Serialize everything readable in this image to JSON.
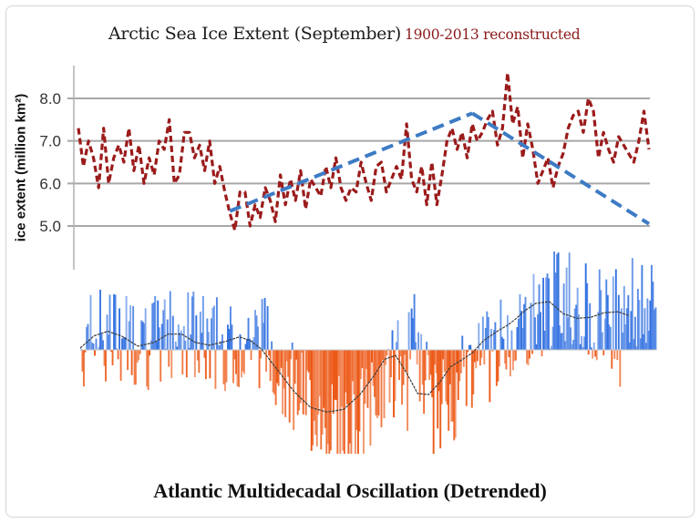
{
  "chart_data": [
    {
      "type": "line",
      "title": "Arctic Sea Ice Extent",
      "title_qualifier": "(September)",
      "subtitle": "1900-2013 reconstructed",
      "xlabel": "",
      "ylabel": "ice extent (million km²)",
      "ylim": [
        4.3,
        8.8
      ],
      "xlim": [
        1900,
        2013
      ],
      "yticks": [
        5.0,
        6.0,
        7.0,
        8.0
      ],
      "ytick_labels": [
        "5.0",
        "6.0",
        "7.0",
        "8.0"
      ],
      "grid": true,
      "colors": {
        "series": "#9b1b1b",
        "trend": "#3d7bc4",
        "grid": "#a8a8a8",
        "axis": "#b0b0b0"
      },
      "series": [
        {
          "name": "September ice extent",
          "style": "dashed",
          "x_start": 1900,
          "values": [
            7.3,
            6.4,
            7.0,
            6.6,
            5.9,
            7.3,
            6.0,
            6.6,
            6.9,
            6.5,
            7.3,
            6.3,
            6.9,
            6.0,
            6.6,
            6.2,
            7.0,
            6.8,
            7.5,
            6.0,
            6.2,
            7.2,
            7.2,
            6.6,
            6.9,
            6.3,
            7.0,
            6.0,
            6.4,
            5.8,
            5.3,
            4.9,
            5.8,
            5.8,
            5.0,
            5.5,
            5.2,
            5.9,
            5.6,
            5.1,
            6.2,
            5.5,
            6.1,
            5.6,
            6.3,
            5.4,
            6.1,
            5.9,
            5.7,
            6.4,
            5.9,
            6.6,
            5.9,
            5.6,
            5.9,
            5.8,
            6.5,
            6.0,
            5.6,
            6.4,
            6.5,
            5.8,
            6.1,
            6.4,
            6.1,
            7.4,
            6.1,
            5.8,
            6.4,
            5.5,
            6.5,
            5.5,
            6.2,
            7.0,
            7.3,
            6.8,
            7.2,
            6.6,
            7.4,
            7.0,
            7.2,
            7.5,
            7.7,
            6.9,
            7.3,
            8.6,
            7.4,
            7.8,
            6.6,
            7.4,
            6.8,
            6.0,
            6.3,
            6.6,
            5.9,
            6.4,
            6.7,
            7.3,
            7.6,
            7.7,
            7.2,
            8.0,
            7.7,
            6.6,
            7.2,
            6.8,
            6.5,
            7.1,
            6.9,
            6.7,
            6.5,
            7.0,
            7.7,
            6.8
          ]
        },
        {
          "name": "Trend",
          "style": "dashed",
          "segments": [
            {
              "x": [
                1930,
                1978
              ],
              "y": [
                5.35,
                7.65
              ]
            },
            {
              "x": [
                1978,
                2013
              ],
              "y": [
                7.65,
                5.05
              ]
            }
          ]
        }
      ]
    },
    {
      "type": "bar",
      "title": "Atlantic Multidecadal Oscillation (Detrended)",
      "xlim": [
        1856,
        2013
      ],
      "ylim": [
        -1.0,
        1.0
      ],
      "baseline": 0,
      "colors": {
        "positive": "#2f6fe0",
        "negative": "#ec5410",
        "smooth": "#3b3b3b"
      },
      "smooth_points": [
        [
          0.0,
          0.02
        ],
        [
          0.025,
          0.15
        ],
        [
          0.05,
          0.2
        ],
        [
          0.075,
          0.15
        ],
        [
          0.105,
          0.04
        ],
        [
          0.135,
          0.08
        ],
        [
          0.16,
          0.17
        ],
        [
          0.185,
          0.17
        ],
        [
          0.21,
          0.08
        ],
        [
          0.235,
          0.05
        ],
        [
          0.265,
          0.09
        ],
        [
          0.29,
          0.14
        ],
        [
          0.31,
          0.1
        ],
        [
          0.33,
          0.01
        ],
        [
          0.36,
          -0.22
        ],
        [
          0.39,
          -0.45
        ],
        [
          0.42,
          -0.62
        ],
        [
          0.45,
          -0.67
        ],
        [
          0.48,
          -0.64
        ],
        [
          0.51,
          -0.48
        ],
        [
          0.535,
          -0.28
        ],
        [
          0.555,
          -0.1
        ],
        [
          0.575,
          -0.06
        ],
        [
          0.595,
          -0.25
        ],
        [
          0.615,
          -0.47
        ],
        [
          0.635,
          -0.48
        ],
        [
          0.655,
          -0.35
        ],
        [
          0.675,
          -0.18
        ],
        [
          0.695,
          -0.11
        ],
        [
          0.715,
          -0.03
        ],
        [
          0.735,
          0.1
        ],
        [
          0.76,
          0.2
        ],
        [
          0.78,
          0.27
        ],
        [
          0.795,
          0.34
        ],
        [
          0.81,
          0.42
        ],
        [
          0.83,
          0.5
        ],
        [
          0.855,
          0.52
        ],
        [
          0.88,
          0.39
        ],
        [
          0.905,
          0.34
        ],
        [
          0.93,
          0.35
        ],
        [
          0.955,
          0.4
        ],
        [
          0.98,
          0.41
        ],
        [
          1.0,
          0.37
        ]
      ]
    }
  ],
  "header": {
    "title_main": "Arctic Sea Ice Extent",
    "title_paren": "(September)",
    "title_sub": "1900-2013 reconstructed"
  },
  "axis": {
    "ylabel": "ice extent (million km²)",
    "ticks": [
      "8.0",
      "7.0",
      "6.0",
      "5.0"
    ]
  },
  "footer": {
    "title": "Atlantic Multidecadal Oscillation (Detrended)"
  }
}
